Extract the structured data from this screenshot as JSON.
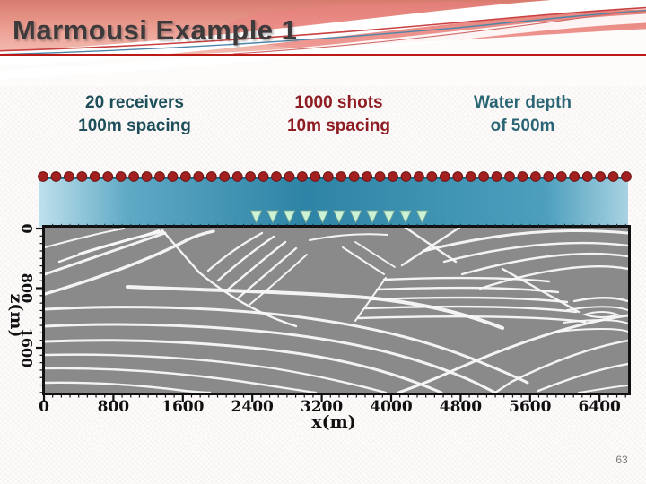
{
  "slide": {
    "title": "Marmousi Example 1",
    "page_number": "63"
  },
  "theme": {
    "accent_line": "#bb1a16",
    "title_color": "#3d3a3b",
    "header_pink_top": "#d87b6e",
    "header_pink_light": "#f3bdb2"
  },
  "annotations": [
    {
      "line1": "20 receivers",
      "line2": "100m spacing",
      "color": "#1d4e59"
    },
    {
      "line1": "1000 shots",
      "line2": "10m spacing",
      "color": "#8e1c22"
    },
    {
      "line1": "Water depth",
      "line2": "of 500m",
      "color": "#2a6575"
    }
  ],
  "figure": {
    "receivers": {
      "count": 46,
      "color": "#a32020",
      "edge_color": "#6d1414"
    },
    "shots": {
      "count": 11,
      "color": "#cdf3d6",
      "edge_color": "#7da891"
    },
    "water_gradient": [
      "#bee0ec",
      "#5fa9c5",
      "#2e84a6",
      "#4d9fbd",
      "#a9d2e2"
    ],
    "water_top_edge": "#17607b",
    "seismic_bg": "#8a8a8a",
    "seismic_line_color": "#f8f8f8",
    "frame_color": "#111111"
  },
  "chart_data": {
    "type": "seismic-image",
    "xlabel": "x(m)",
    "ylabel": "z(m)",
    "x_ticks": [
      0,
      800,
      1600,
      2400,
      3200,
      4000,
      4800,
      5600,
      6400
    ],
    "y_ticks": [
      0,
      800,
      1600
    ],
    "x_minor_step": 100,
    "y_minor_step": 100,
    "x_range": [
      0,
      6730
    ],
    "y_range": [
      0,
      2200
    ],
    "grid": false,
    "legend": false
  }
}
